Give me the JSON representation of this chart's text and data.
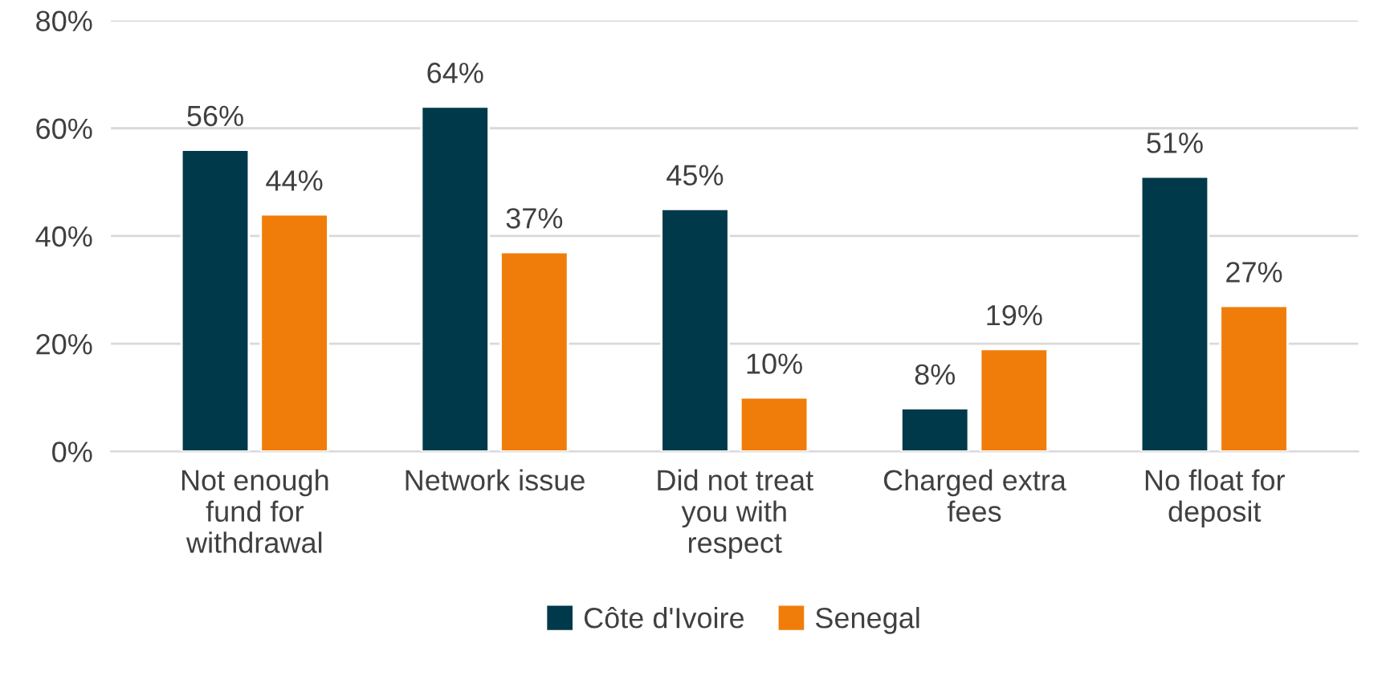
{
  "chart_data": {
    "type": "bar",
    "categories": [
      "Not enough\nfund for\nwithdrawal",
      "Network issue",
      "Did not treat\nyou with\nrespect",
      "Charged extra\nfees",
      "No float for\ndeposit"
    ],
    "series": [
      {
        "name": "Côte d'Ivoire",
        "color": "#003a4a",
        "values": [
          56,
          64,
          45,
          8,
          51
        ],
        "value_labels": [
          "56%",
          "64%",
          "45%",
          "8%",
          "51%"
        ]
      },
      {
        "name": "Senegal",
        "color": "#f07d0a",
        "values": [
          44,
          37,
          10,
          19,
          27
        ],
        "value_labels": [
          "44%",
          "37%",
          "10%",
          "19%",
          "27%"
        ]
      }
    ],
    "ylim": [
      0,
      80
    ],
    "yticks": [
      {
        "value": 0,
        "label": "0%"
      },
      {
        "value": 20,
        "label": "20%"
      },
      {
        "value": 40,
        "label": "40%"
      },
      {
        "value": 60,
        "label": "60%"
      },
      {
        "value": 80,
        "label": "80%"
      }
    ],
    "grid": "y",
    "legend": "bottom"
  }
}
